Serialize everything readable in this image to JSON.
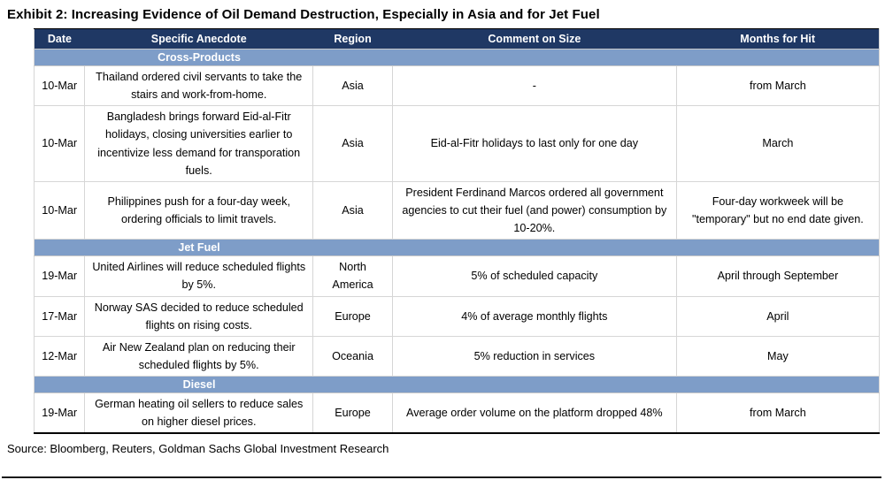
{
  "exhibit": {
    "title": "Exhibit 2: Increasing Evidence of Oil Demand Destruction, Especially in Asia and for Jet Fuel",
    "source": "Source: Bloomberg, Reuters, Goldman Sachs Global Investment Research"
  },
  "chart_data": {
    "type": "table",
    "columns": [
      "Date",
      "Specific Anecdote",
      "Region",
      "Comment on Size",
      "Months for Hit"
    ],
    "column_widths_pct": [
      6,
      27,
      9.4,
      33.6,
      24
    ],
    "sections": [
      {
        "name": "Cross-Products",
        "rows": [
          [
            "10-Mar",
            "Thailand ordered civil servants to take the stairs and work-from-home.",
            "Asia",
            "-",
            "from March"
          ],
          [
            "10-Mar",
            "Bangladesh brings forward Eid-al-Fitr holidays, closing universities earlier to incentivize less demand for transporation fuels.",
            "Asia",
            "Eid-al-Fitr holidays to last only for one day",
            "March"
          ],
          [
            "10-Mar",
            "Philippines push for a four-day week, ordering officials to limit travels.",
            "Asia",
            "President Ferdinand Marcos ordered all government agencies to cut their fuel (and power) consumption by 10-20%.",
            "Four-day workweek will be \"temporary\" but no end date given."
          ]
        ]
      },
      {
        "name": "Jet Fuel",
        "rows": [
          [
            "19-Mar",
            "United Airlines will reduce scheduled flights by 5%.",
            "North America",
            "5% of scheduled capacity",
            "April through September"
          ],
          [
            "17-Mar",
            "Norway SAS decided to reduce scheduled flights on rising costs.",
            "Europe",
            "4% of average monthly flights",
            "April"
          ],
          [
            "12-Mar",
            "Air New Zealand plan on reducing their scheduled flights by 5%.",
            "Oceania",
            "5% reduction in services",
            "May"
          ]
        ]
      },
      {
        "name": "Diesel",
        "rows": [
          [
            "19-Mar",
            "German heating oil sellers to reduce sales on higher diesel prices.",
            "Europe",
            "Average order volume on the platform dropped 48%",
            "from March"
          ]
        ]
      }
    ],
    "colors": {
      "header_bg": "#1F3864",
      "section_bg": "#7E9DC8",
      "header_text": "#FFFFFF"
    }
  }
}
